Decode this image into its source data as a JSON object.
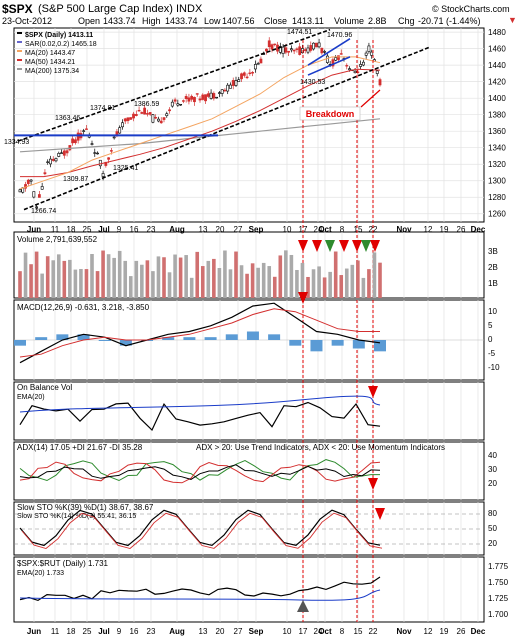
{
  "header": {
    "ticker": "$SPX",
    "name": "(S&P 500 Large Cap Index) INDX",
    "watermark": "© StockCharts.com",
    "date": "23-Oct-2012",
    "open_label": "Open",
    "open": "1433.74",
    "high_label": "High",
    "high": "1433.74",
    "low_label": "Low",
    "low": "1407.56",
    "close_label": "Close",
    "close": "1413.11",
    "volume_label": "Volume",
    "volume": "2.8B",
    "chg_label": "Chg",
    "chg": "-20.71 (-1.44%)"
  },
  "colors": {
    "up": "#000000",
    "down": "#d32f2f",
    "ma20": "#f4a460",
    "ma50": "#d32f2f",
    "ma200": "#999999",
    "sar": "#6666cc",
    "annotation": "#e00000",
    "signal_down": "#e00000",
    "signal_up": "#2e8b2e",
    "support": "#1a3cc8",
    "ema": "#1a3cc8",
    "vol_bar": "#aaaaaa"
  },
  "chart_data": [
    {
      "type": "candlestick",
      "title": "$SPX (Daily) 1413.11",
      "legend": [
        {
          "label": "$SPX (Daily) 1413.11",
          "color": "#000000"
        },
        {
          "label": "SAR(0.02,0.2) 1465.18",
          "color": "#6666cc"
        },
        {
          "label": "MA(20) 1443.47",
          "color": "#f4a460"
        },
        {
          "label": "MA(50) 1434.21",
          "color": "#d32f2f"
        },
        {
          "label": "MA(200) 1375.34",
          "color": "#999999"
        }
      ],
      "ylim": [
        1250,
        1485
      ],
      "yticks": [
        1260,
        1280,
        1300,
        1320,
        1340,
        1360,
        1380,
        1400,
        1420,
        1440,
        1460,
        1480
      ],
      "grid": true,
      "annotations": [
        "1266.74",
        "1334.93",
        "1363.46",
        "1374.81",
        "1386.59",
        "1309.87",
        "1325.41",
        "1474.51",
        "1470.96",
        "1430.53",
        "Breakdown"
      ],
      "series": [
        {
          "name": "MA(20)",
          "values": [
            1290,
            1300,
            1310,
            1325,
            1335,
            1345,
            1355,
            1365,
            1375,
            1390,
            1405,
            1425,
            1440,
            1450,
            1450,
            1443
          ]
        },
        {
          "name": "MA(50)",
          "values": [
            1305,
            1305,
            1310,
            1318,
            1325,
            1332,
            1340,
            1350,
            1360,
            1372,
            1385,
            1400,
            1415,
            1428,
            1435,
            1434
          ]
        },
        {
          "name": "MA(200)",
          "values": [
            1335,
            1337,
            1339,
            1341,
            1343,
            1345,
            1348,
            1351,
            1354,
            1357,
            1360,
            1363,
            1366,
            1369,
            1372,
            1375
          ]
        }
      ]
    },
    {
      "type": "bar",
      "title": "Volume 2,791,639,552",
      "ylabels": [
        "3B",
        "2B",
        "1B"
      ]
    },
    {
      "type": "line",
      "title": "MACD(12,26,9) -0.631, 3.218, -3.850",
      "ylabels": [
        "10",
        "5",
        "0",
        "-5",
        "-10"
      ],
      "series": [
        {
          "name": "MACD",
          "values": [
            -8,
            -4,
            0,
            2,
            1,
            -2,
            0,
            2,
            3,
            5,
            8,
            12,
            13,
            8,
            3,
            2,
            0,
            -1
          ]
        },
        {
          "name": "Signal",
          "values": [
            -6,
            -5,
            -2,
            0,
            1,
            0,
            0,
            1,
            2,
            4,
            6,
            9,
            11,
            10,
            7,
            4,
            3,
            3
          ]
        }
      ]
    },
    {
      "type": "line",
      "title": "On Balance Vol",
      "legend": [
        {
          "label": "EMA(20)",
          "color": "#1a3cc8"
        }
      ]
    },
    {
      "type": "line",
      "title": "ADX(14) 17.05 +DI 21.67 -DI 35.28",
      "annotation": "ADX > 20: Use Trend Indicators, ADX < 20: Use Momentum Indicators",
      "ylabels": [
        "40",
        "30",
        "20"
      ]
    },
    {
      "type": "line",
      "title": "Slow STO %K(39) %D(1) 38.67, 38.67",
      "subtitle": "Slow STO %K(14) %D(3) 55.41, 36.15",
      "ylabels": [
        "80",
        "50",
        "20"
      ]
    },
    {
      "type": "line",
      "title": "$SPX:$RUT (Daily) 1.731",
      "legend": [
        {
          "label": "EMA(20) 1.733",
          "color": "#1a3cc8"
        }
      ],
      "ylabels": [
        "1.775",
        "1.750",
        "1.725",
        "1.700"
      ]
    }
  ],
  "x_axis": {
    "labels": [
      "Jun",
      "11",
      "18",
      "25",
      "Jul",
      "9",
      "16",
      "23",
      "Aug",
      "13",
      "20",
      "27",
      "Sep",
      "10",
      "17",
      "24",
      "Oct",
      "8",
      "15",
      "22",
      "Nov",
      "12",
      "19",
      "26",
      "Dec"
    ]
  }
}
